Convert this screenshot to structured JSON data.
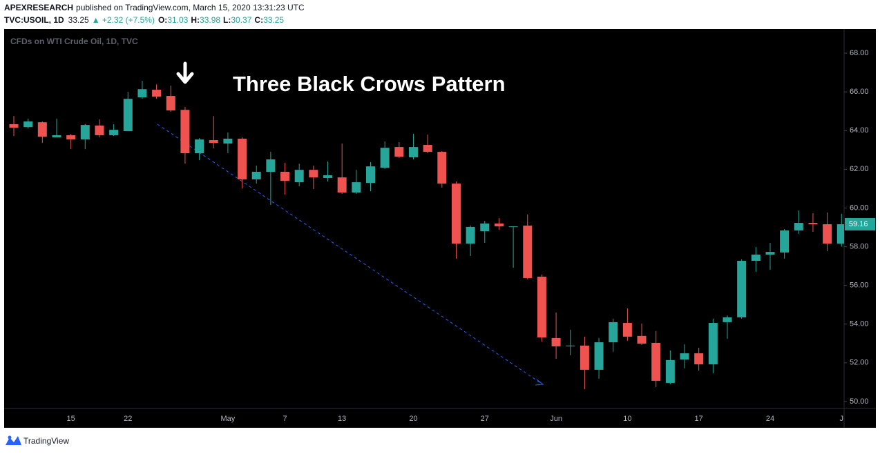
{
  "header": {
    "author": "APEXRESEARCH",
    "published": "published on TradingView.com, March 15, 2020 13:31:23 UTC",
    "symbol": "TVC:USOIL, 1D",
    "price": "33.25",
    "change": "▲ +2.32 (+7.5%)",
    "ohlc": [
      {
        "label": "O:",
        "value": "31.03"
      },
      {
        "label": "H:",
        "value": "33.98"
      },
      {
        "label": "L:",
        "value": "30.37"
      },
      {
        "label": "C:",
        "value": "33.25"
      }
    ]
  },
  "footer": {
    "brand": "TradingView"
  },
  "chart_data": {
    "type": "candlestick",
    "title": "CFDs on WTI Crude Oil, 1D, TVC",
    "annotation": "Three Black Crows Pattern",
    "up_color": "#26a69a",
    "down_color": "#ef5350",
    "grid": false,
    "categories": [
      null,
      null,
      null,
      null,
      "15",
      null,
      null,
      null,
      "22",
      null,
      null,
      null,
      null,
      null,
      null,
      "May",
      null,
      null,
      null,
      "7",
      null,
      null,
      null,
      "13",
      null,
      null,
      null,
      null,
      "20",
      null,
      null,
      null,
      null,
      "27",
      null,
      null,
      null,
      null,
      "Jun",
      null,
      null,
      null,
      null,
      "10",
      null,
      null,
      null,
      null,
      "17",
      null,
      null,
      null,
      null,
      "24",
      null,
      null,
      null,
      null,
      "J"
    ],
    "open": [
      64.33,
      64.18,
      64.43,
      63.65,
      63.76,
      63.54,
      64.26,
      63.76,
      63.97,
      65.72,
      66.11,
      65.79,
      65.07,
      62.83,
      63.51,
      63.33,
      63.58,
      61.48,
      61.87,
      61.87,
      61.33,
      61.97,
      61.55,
      61.58,
      60.8,
      61.3,
      62.08,
      63.15,
      62.62,
      63.26,
      62.9,
      61.26,
      58.16,
      58.8,
      59.2,
      59.02,
      59.09,
      56.45,
      53.28,
      52.85,
      52.89,
      51.64,
      53.06,
      54.06,
      53.39,
      53.03,
      50.96,
      52.17,
      52.49,
      51.92,
      54.1,
      54.35,
      57.27,
      57.59,
      57.7,
      58.84,
      59.23,
      59.16,
      58.16
    ],
    "high": [
      64.75,
      64.61,
      64.47,
      64.61,
      63.83,
      64.33,
      64.58,
      64.33,
      66.0,
      66.57,
      66.39,
      66.32,
      65.22,
      63.61,
      64.75,
      63.9,
      63.65,
      62.19,
      62.9,
      62.33,
      62.29,
      62.19,
      62.4,
      63.33,
      61.97,
      62.37,
      63.44,
      63.4,
      63.83,
      63.79,
      62.94,
      61.37,
      59.09,
      59.34,
      59.48,
      59.05,
      59.66,
      56.56,
      54.6,
      53.71,
      53.35,
      53.28,
      54.28,
      54.81,
      54.03,
      53.64,
      52.64,
      52.96,
      52.78,
      54.28,
      54.45,
      57.34,
      57.98,
      58.2,
      58.91,
      59.87,
      59.73,
      59.77,
      59.7
    ],
    "low": [
      63.72,
      64.11,
      63.36,
      63.65,
      63.04,
      63.04,
      63.65,
      63.72,
      63.97,
      65.64,
      65.64,
      64.97,
      62.29,
      62.47,
      63.08,
      62.83,
      61.01,
      61.26,
      60.16,
      60.69,
      61.12,
      60.98,
      61.37,
      60.73,
      60.73,
      60.87,
      62.01,
      62.58,
      62.51,
      62.83,
      61.05,
      57.38,
      57.52,
      58.2,
      58.87,
      56.91,
      56.31,
      53.1,
      52.21,
      52.39,
      50.64,
      51.18,
      52.57,
      53.14,
      52.92,
      50.75,
      50.89,
      51.71,
      51.6,
      51.46,
      53.24,
      54.28,
      56.7,
      56.81,
      57.38,
      58.66,
      58.77,
      57.77,
      58.0
    ],
    "close": [
      64.15,
      64.47,
      63.68,
      63.76,
      63.54,
      64.29,
      63.76,
      64.04,
      65.64,
      66.14,
      65.75,
      65.04,
      62.83,
      63.54,
      63.36,
      63.58,
      61.48,
      61.87,
      62.51,
      61.4,
      61.97,
      61.58,
      61.69,
      60.8,
      61.33,
      62.15,
      63.11,
      62.65,
      63.15,
      62.9,
      61.26,
      58.16,
      59.02,
      59.2,
      59.05,
      59.05,
      56.38,
      53.31,
      52.85,
      52.89,
      51.64,
      53.06,
      54.1,
      53.35,
      52.99,
      51.07,
      52.14,
      52.49,
      51.92,
      54.06,
      54.35,
      57.27,
      57.59,
      57.73,
      58.84,
      59.23,
      59.16,
      58.16,
      59.16
    ],
    "last_price": 59.16,
    "ylim": [
      49.64,
      69.25
    ],
    "yticks": [
      {
        "value": 50,
        "label": "50.00"
      },
      {
        "value": 52,
        "label": "52.00"
      },
      {
        "value": 54,
        "label": "54.00"
      },
      {
        "value": 56,
        "label": "56.00"
      },
      {
        "value": 58,
        "label": "58.00"
      },
      {
        "value": 60,
        "label": "60.00"
      },
      {
        "value": 62,
        "label": "62.00"
      },
      {
        "value": 64,
        "label": "64.00"
      },
      {
        "value": 66,
        "label": "66.00"
      },
      {
        "value": 68,
        "label": "68.00"
      }
    ]
  }
}
